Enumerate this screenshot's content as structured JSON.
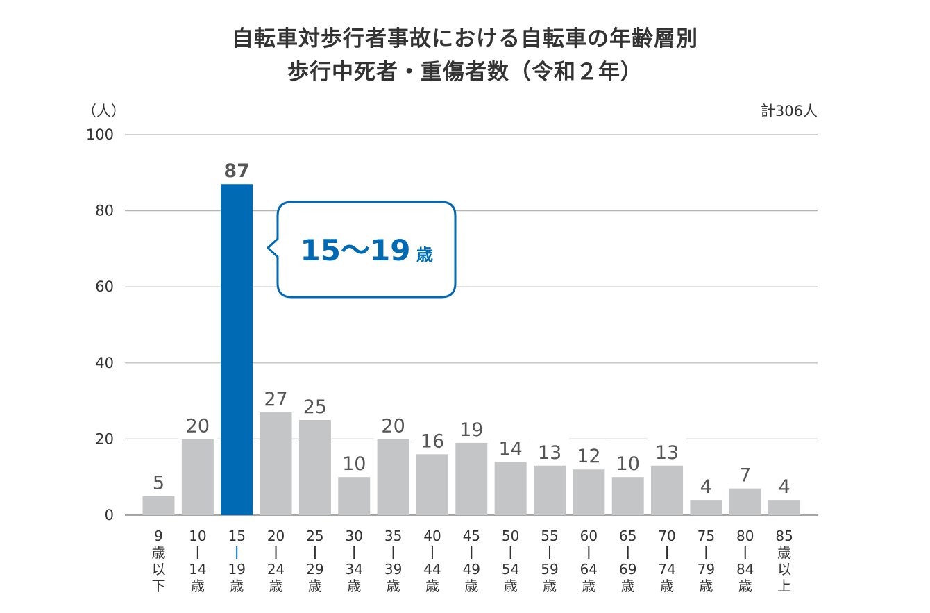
{
  "title_line1": "自転車対歩行者事故における自転車の年齢層別",
  "title_line2": "歩行中死者・重傷者数（令和２年）",
  "unit_label": "（人）",
  "total_label": "計306人",
  "callout_text": "15～19",
  "callout_suffix": "歳",
  "chart_data": {
    "type": "bar",
    "title": "自転車対歩行者事故における自転車の年齢層別 歩行中死者・重傷者数（令和２年）",
    "ylabel": "（人）",
    "ylim": [
      0,
      100
    ],
    "yticks": [
      0,
      20,
      40,
      60,
      80,
      100
    ],
    "grid": true,
    "categories": [
      [
        "9",
        "歳",
        "以",
        "下"
      ],
      [
        "10",
        "|",
        "14",
        "歳"
      ],
      [
        "15",
        "|",
        "19",
        "歳"
      ],
      [
        "20",
        "|",
        "24",
        "歳"
      ],
      [
        "25",
        "|",
        "29",
        "歳"
      ],
      [
        "30",
        "|",
        "34",
        "歳"
      ],
      [
        "35",
        "|",
        "39",
        "歳"
      ],
      [
        "40",
        "|",
        "44",
        "歳"
      ],
      [
        "45",
        "|",
        "49",
        "歳"
      ],
      [
        "50",
        "|",
        "54",
        "歳"
      ],
      [
        "55",
        "|",
        "59",
        "歳"
      ],
      [
        "60",
        "|",
        "64",
        "歳"
      ],
      [
        "65",
        "|",
        "69",
        "歳"
      ],
      [
        "70",
        "|",
        "74",
        "歳"
      ],
      [
        "75",
        "|",
        "79",
        "歳"
      ],
      [
        "80",
        "|",
        "84",
        "歳"
      ],
      [
        "85",
        "歳",
        "以",
        "上"
      ]
    ],
    "values": [
      5,
      20,
      87,
      27,
      25,
      10,
      20,
      16,
      19,
      14,
      13,
      12,
      10,
      13,
      4,
      7,
      4
    ],
    "highlight_index": 2,
    "colors": {
      "bar": "#c4c5c7",
      "highlight": "#006ab4",
      "grid": "#b5b5b5",
      "label": "#555555"
    }
  }
}
